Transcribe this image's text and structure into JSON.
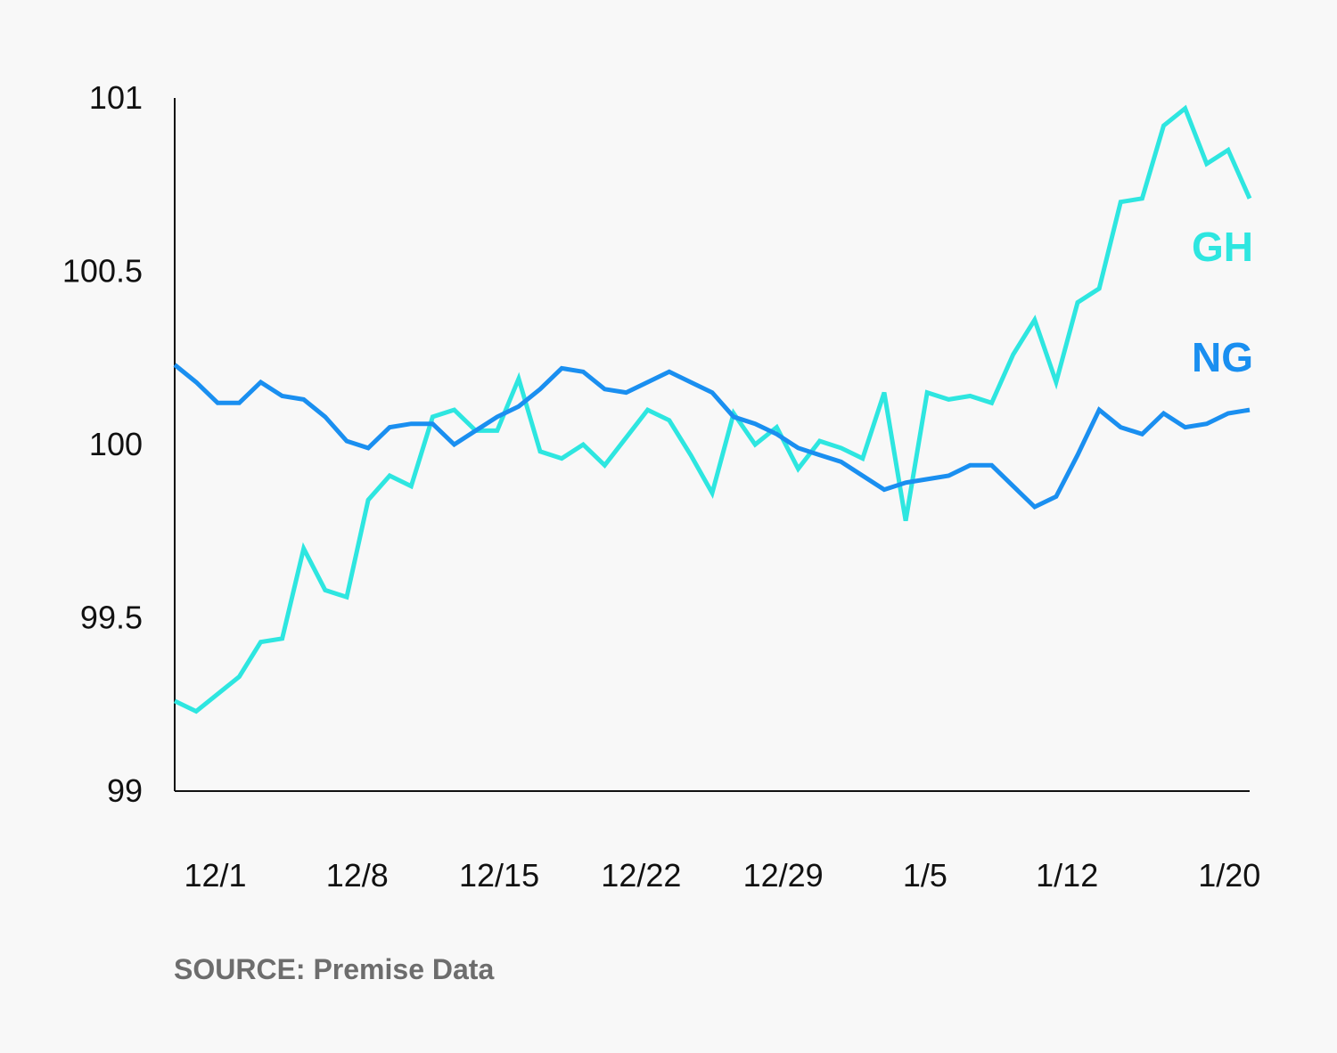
{
  "chart_data": {
    "type": "line",
    "title": "",
    "xlabel": "",
    "ylabel": "",
    "ylim": [
      99,
      101
    ],
    "yticks": [
      "99",
      "99.5",
      "100",
      "100.5",
      "101"
    ],
    "xticks": [
      "12/1",
      "12/8",
      "12/15",
      "12/22",
      "12/29",
      "1/5",
      "1/12",
      "1/20"
    ],
    "x_start": "11/29",
    "x_end": "1/21",
    "grid": false,
    "series": [
      {
        "name": "GH",
        "color": "#2ee6e0",
        "values": [
          99.26,
          99.23,
          99.28,
          99.33,
          99.43,
          99.44,
          99.7,
          99.58,
          99.56,
          99.84,
          99.91,
          99.88,
          100.08,
          100.1,
          100.04,
          100.04,
          100.19,
          99.98,
          99.96,
          100.0,
          99.94,
          100.02,
          100.1,
          100.07,
          99.97,
          99.86,
          100.09,
          100.0,
          100.05,
          99.93,
          100.01,
          99.99,
          99.96,
          100.15,
          99.78,
          100.15,
          100.13,
          100.14,
          100.12,
          100.26,
          100.36,
          100.18,
          100.41,
          100.45,
          100.7,
          100.71,
          100.92,
          100.97,
          100.81,
          100.85,
          100.71
        ]
      },
      {
        "name": "NG",
        "color": "#1a8ff0",
        "values": [
          100.23,
          100.18,
          100.12,
          100.12,
          100.18,
          100.14,
          100.13,
          100.08,
          100.01,
          99.99,
          100.05,
          100.06,
          100.06,
          100.0,
          100.04,
          100.08,
          100.11,
          100.16,
          100.22,
          100.21,
          100.16,
          100.15,
          100.18,
          100.21,
          100.18,
          100.15,
          100.08,
          100.06,
          100.03,
          99.99,
          99.97,
          99.95,
          99.91,
          99.87,
          99.89,
          99.9,
          99.91,
          99.94,
          99.94,
          99.88,
          99.82,
          99.85,
          99.97,
          100.1,
          100.05,
          100.03,
          100.09,
          100.05,
          100.06,
          100.09,
          100.1
        ]
      }
    ],
    "legend_placement": "right, at line ends"
  },
  "source": "SOURCE: Premise Data",
  "colors": {
    "background": "#f8f8f8",
    "axis": "#111111",
    "source_text": "#6d6d6d"
  }
}
